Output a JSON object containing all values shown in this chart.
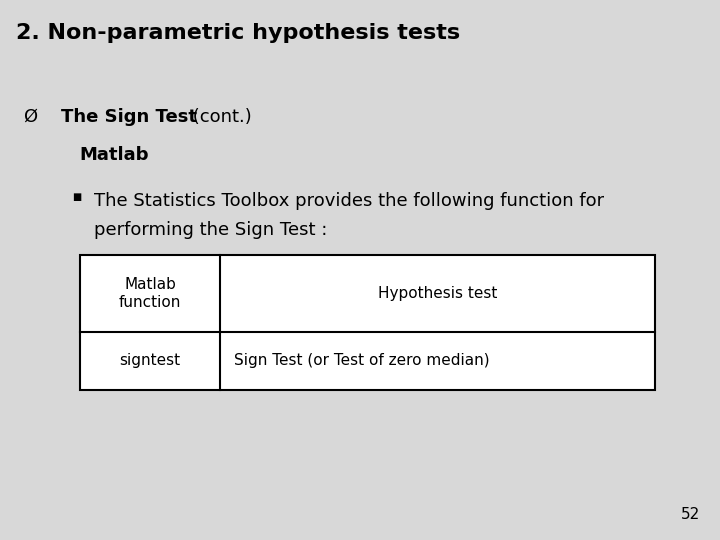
{
  "title": "2. Non-parametric hypothesis tests",
  "bg_color": "#d8d8d8",
  "line1_bold": "The Sign Test",
  "line1_normal": " (cont.)",
  "line2": "Matlab",
  "bullet_text1": "The Statistics Toolbox provides the following function for",
  "bullet_text2": "performing the Sign Test :",
  "table_header_col1": "Matlab\nfunction",
  "table_header_col2": "Hypothesis test",
  "table_row_col1": "signtest",
  "table_row_col2": "Sign Test (or Test of zero median)",
  "page_num": "52",
  "title_fontsize": 16,
  "body_fontsize": 13,
  "table_fontsize": 11
}
